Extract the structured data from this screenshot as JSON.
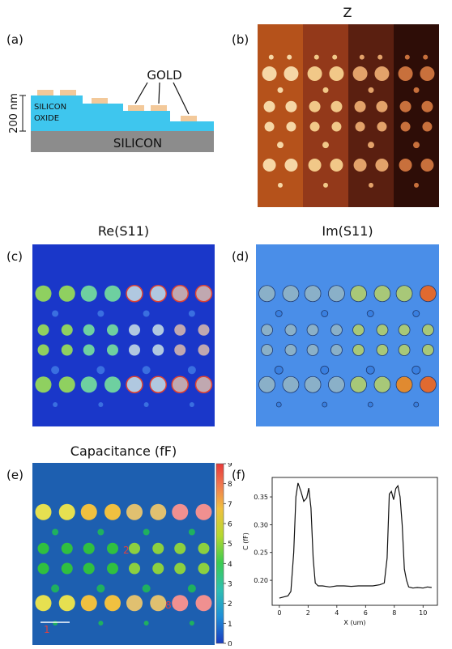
{
  "panels": {
    "a": {
      "label": "(a)",
      "height_label": "200 nm",
      "oxide_label_line1": "SILICON",
      "oxide_label_line2": "OXIDE",
      "substrate_label": "SILICON",
      "gold_label": "GOLD"
    },
    "b": {
      "label": "(b)",
      "title": "Z"
    },
    "c": {
      "label": "(c)",
      "title": "Re(S11)"
    },
    "d": {
      "label": "(d)",
      "title": "Im(S11)"
    },
    "e": {
      "label": "(e)",
      "title": "Capacitance (fF)",
      "colorbar_ticks": [
        "9",
        "8",
        "7",
        "6",
        "5",
        "4",
        "3",
        "2",
        "1",
        "0"
      ],
      "marker_1": "1",
      "marker_2": "2",
      "marker_8": "8"
    },
    "f": {
      "label": "(f)"
    }
  },
  "colors": {
    "oxide": "#3ec6ee",
    "substrate": "#8c8c8c",
    "gold_pad": "#f3c99a",
    "z_background": [
      "#b5521b",
      "#93391a",
      "#5a1f10",
      "#2e0d07"
    ],
    "re_background": "#1a37c9",
    "im_background": "#4a8ee8",
    "cap_background": "#1d5fb0"
  },
  "chart_data": {
    "type": "line",
    "xlabel": "X (um)",
    "ylabel": "C (fF)",
    "xlim": [
      -0.5,
      11.0
    ],
    "ylim": [
      0.155,
      0.385
    ],
    "x_ticks": [
      0,
      2,
      4,
      6,
      8,
      10
    ],
    "y_ticks": [
      0.2,
      0.25,
      0.3,
      0.35
    ],
    "y_tick_labels": [
      "0.20",
      "0.25",
      "0.30",
      "0.35"
    ],
    "x": [
      0.0,
      0.3,
      0.6,
      0.8,
      1.0,
      1.15,
      1.3,
      1.5,
      1.7,
      1.9,
      2.05,
      2.2,
      2.35,
      2.5,
      2.7,
      3.0,
      3.5,
      4.0,
      4.5,
      5.0,
      5.5,
      6.0,
      6.5,
      7.0,
      7.3,
      7.5,
      7.65,
      7.8,
      7.95,
      8.1,
      8.25,
      8.4,
      8.55,
      8.7,
      8.85,
      9.0,
      9.3,
      9.6,
      10.0,
      10.3,
      10.6
    ],
    "y": [
      0.168,
      0.17,
      0.172,
      0.18,
      0.25,
      0.35,
      0.375,
      0.36,
      0.342,
      0.348,
      0.366,
      0.33,
      0.24,
      0.195,
      0.19,
      0.19,
      0.188,
      0.19,
      0.19,
      0.189,
      0.19,
      0.19,
      0.19,
      0.192,
      0.195,
      0.24,
      0.355,
      0.36,
      0.345,
      0.365,
      0.37,
      0.35,
      0.3,
      0.22,
      0.2,
      0.188,
      0.186,
      0.187,
      0.186,
      0.188,
      0.187
    ]
  }
}
